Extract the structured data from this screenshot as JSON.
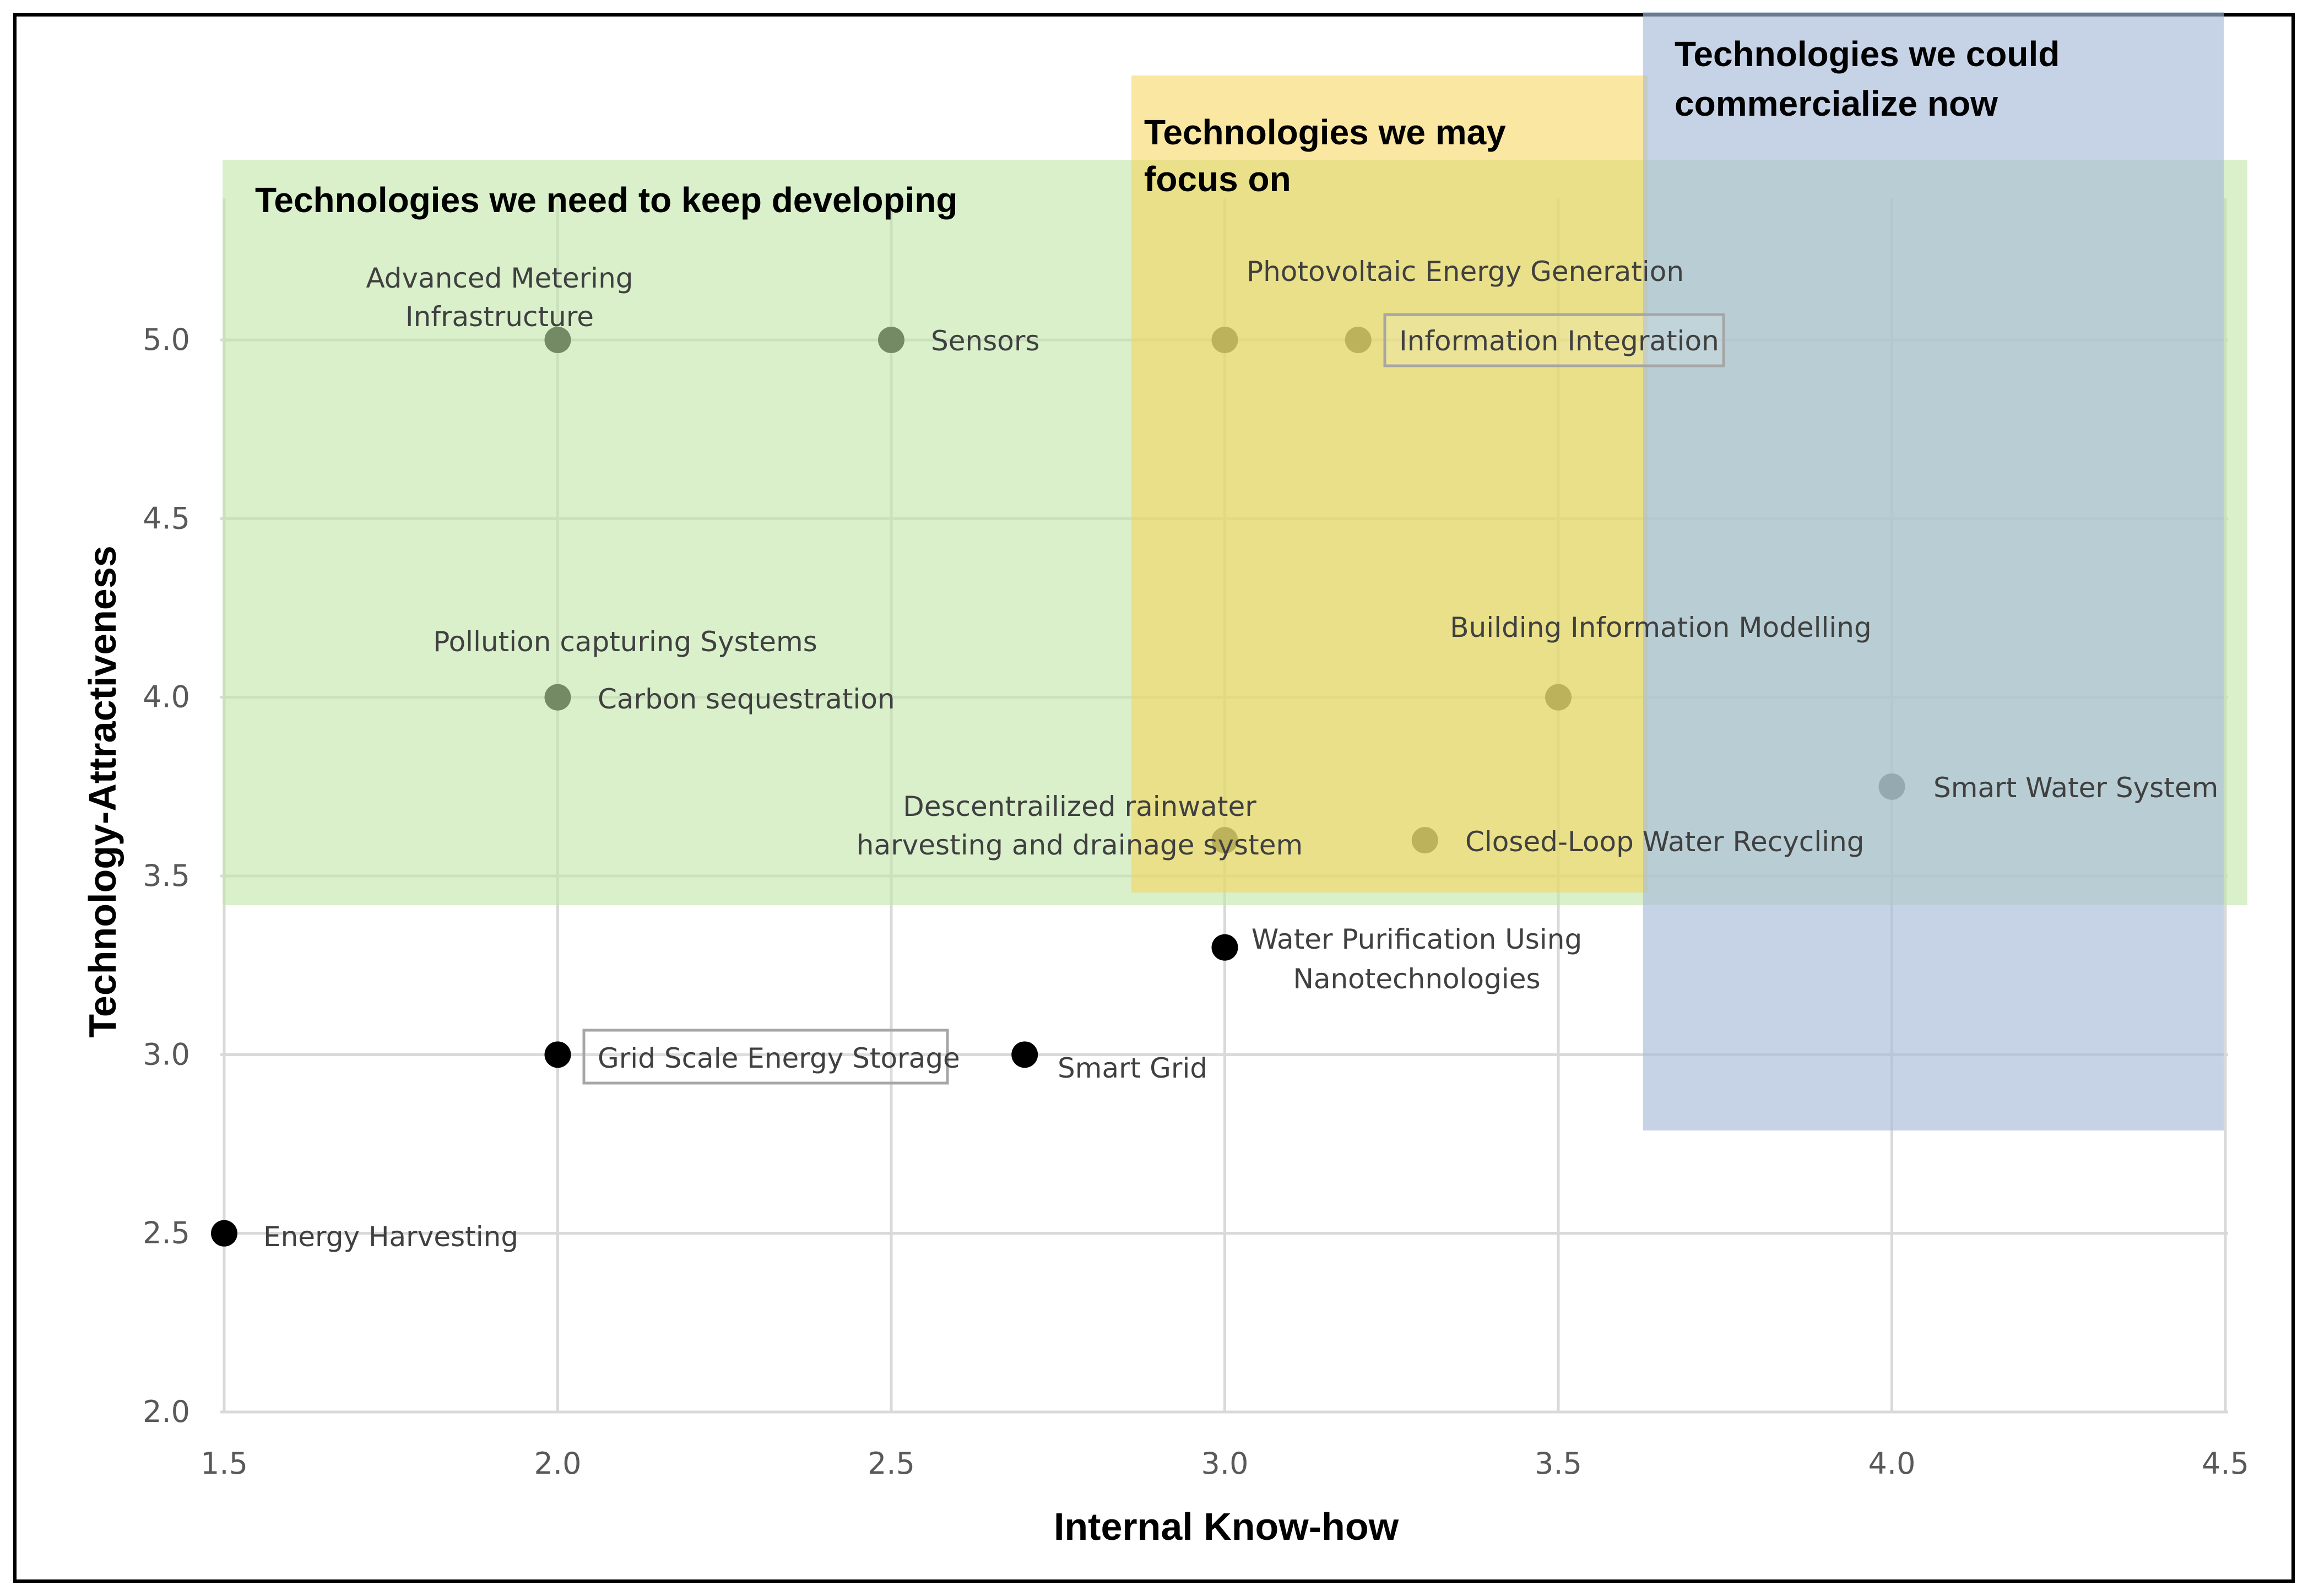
{
  "chart_data": {
    "type": "scatter",
    "xlabel": "Internal Know-how",
    "ylabel": "Technology-Attractiveness",
    "xlim": [
      1.5,
      4.5
    ],
    "ylim": [
      2.0,
      5.5
    ],
    "xticks": [
      "1.5",
      "2.0",
      "2.5",
      "3.0",
      "3.5",
      "4.0",
      "4.5"
    ],
    "yticks": [
      "2.0",
      "2.5",
      "3.0",
      "3.5",
      "4.0",
      "4.5",
      "5.0"
    ],
    "grid": true,
    "colors": {
      "point": "#000000",
      "green_zone": "#bfe6a8",
      "yellow_zone": "#f5d454",
      "blue_zone": "#a7bcd9"
    },
    "regions": [
      {
        "name": "Technologies we need to keep developing",
        "x_range": [
          1.5,
          4.5
        ],
        "y_range": [
          3.42,
          5.5
        ],
        "color": "#bfe6a8"
      },
      {
        "name": "Technologies we may focus on",
        "x_range": [
          2.86,
          3.63
        ],
        "y_range": [
          3.45,
          5.75
        ],
        "color": "#f5d454"
      },
      {
        "name": "Technologies we could commercialize now",
        "x_range": [
          3.63,
          4.5
        ],
        "y_range": [
          2.8,
          5.95
        ],
        "color": "#a7bcd9"
      }
    ],
    "points": [
      {
        "label": "Advanced Metering Infrastructure",
        "x": 2.0,
        "y": 5.0
      },
      {
        "label": "Sensors",
        "x": 2.5,
        "y": 5.0
      },
      {
        "label": "Photovoltaic Energy Generation",
        "x": 3.0,
        "y": 5.0
      },
      {
        "label": "Information Integration",
        "x": 3.2,
        "y": 5.0,
        "boxed": true
      },
      {
        "label": "Pollution capturing Systems",
        "x": 2.0,
        "y": 4.0
      },
      {
        "label": "Carbon sequestration",
        "x": 2.0,
        "y": 4.0
      },
      {
        "label": "Building Information Modelling",
        "x": 3.5,
        "y": 4.0
      },
      {
        "label": "Smart Water System",
        "x": 4.0,
        "y": 3.75
      },
      {
        "label": "Descentrailized rainwater harvesting and drainage system",
        "x": 3.0,
        "y": 3.6
      },
      {
        "label": "Closed-Loop Water Recycling",
        "x": 3.3,
        "y": 3.6
      },
      {
        "label": "Water Purification Using Nanotechnologies",
        "x": 3.0,
        "y": 3.3
      },
      {
        "label": "Grid Scale Energy Storage",
        "x": 2.0,
        "y": 3.0,
        "boxed": true
      },
      {
        "label": "Smart Grid",
        "x": 2.7,
        "y": 3.0
      },
      {
        "label": "Energy Harvesting",
        "x": 1.5,
        "y": 2.5
      }
    ]
  }
}
